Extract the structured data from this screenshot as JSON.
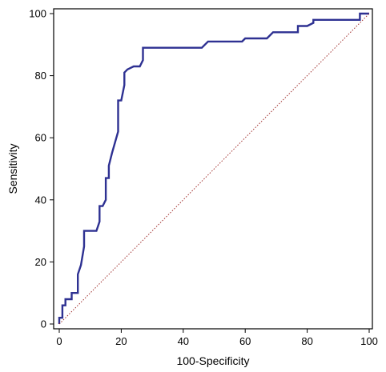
{
  "chart_data": {
    "type": "line",
    "title": "",
    "xlabel": "100-Specificity",
    "ylabel": "Sensitivity",
    "xlim": [
      0,
      100
    ],
    "ylim": [
      0,
      100
    ],
    "x_ticks": [
      0,
      20,
      40,
      60,
      80,
      100
    ],
    "y_ticks": [
      0,
      20,
      40,
      60,
      80,
      100
    ],
    "x_tick_labels": [
      "0",
      "20",
      "40",
      "60",
      "80",
      "100"
    ],
    "y_tick_labels": [
      "0",
      "20",
      "40",
      "60",
      "80",
      "100"
    ],
    "grid": false,
    "legend": "none",
    "series": [
      {
        "kind": "roc-step",
        "color": "#2e3192",
        "x": [
          0,
          0,
          1,
          1,
          2,
          2,
          4,
          4,
          6,
          6,
          6,
          7,
          8,
          8,
          9,
          12,
          13,
          13,
          14,
          15,
          15,
          16,
          16,
          17,
          19,
          19,
          20,
          21,
          21,
          22,
          24,
          26,
          27,
          27,
          46,
          48,
          59,
          60,
          67,
          69,
          77,
          77,
          80,
          82,
          82,
          97,
          97,
          100
        ],
        "y": [
          0,
          2,
          2,
          6,
          6,
          8,
          8,
          10,
          10,
          12,
          16,
          19,
          25,
          30,
          30,
          30,
          33,
          38,
          38,
          40,
          47,
          47,
          51,
          55,
          62,
          72,
          72,
          77,
          81,
          82,
          83,
          83,
          85,
          89,
          89,
          91,
          91,
          92,
          92,
          94,
          94,
          96,
          96,
          97,
          98,
          98,
          100,
          100
        ]
      },
      {
        "kind": "reference-diagonal",
        "color": "#a0302e",
        "x": [
          0,
          100
        ],
        "y": [
          0,
          100
        ]
      }
    ]
  }
}
